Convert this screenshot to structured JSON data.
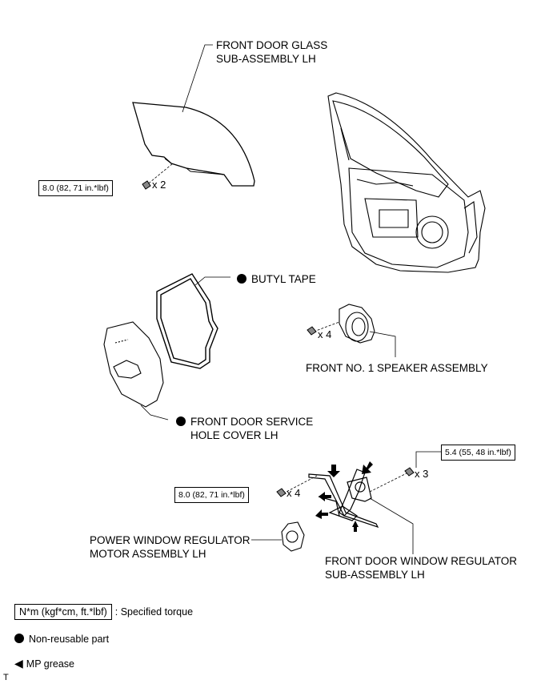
{
  "labels": {
    "glass": [
      "FRONT DOOR GLASS",
      "SUB-ASSEMBLY LH"
    ],
    "butyl": "BUTYL TAPE",
    "speaker": "FRONT NO. 1 SPEAKER ASSEMBLY",
    "service_cover": [
      "FRONT DOOR SERVICE",
      "HOLE COVER LH"
    ],
    "motor": [
      "POWER WINDOW REGULATOR",
      "MOTOR ASSEMBLY LH"
    ],
    "regulator": [
      "FRONT DOOR WINDOW REGULATOR",
      "SUB-ASSEMBLY LH"
    ]
  },
  "torques": {
    "glass_bolt": "8.0 (82, 71 in.*lbf)",
    "regulator_bolt": "8.0 (82, 71 in.*lbf)",
    "regulator_nut": "5.4 (55, 48 in.*lbf)"
  },
  "quantities": {
    "glass": "x 2",
    "speaker": "x 4",
    "regulator_bolt": "x 4",
    "regulator_nut": "x 3"
  },
  "legend": {
    "torque_box": "N*m (kgf*cm, ft.*lbf)",
    "torque_text": ": Specified torque",
    "nonreusable": "Non-reusable part",
    "grease": "MP grease"
  },
  "corner_mark": "T"
}
